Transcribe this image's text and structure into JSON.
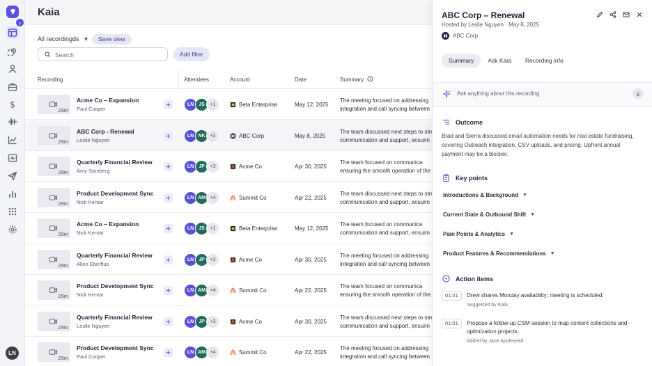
{
  "app": {
    "title": "Kaia",
    "user_initials": "LN"
  },
  "toolbar": {
    "view_label": "All recordingds",
    "save_view": "Save view",
    "search_placeholder": "Search",
    "add_filter": "Add filter"
  },
  "columns": {
    "recording": "Recording",
    "attendees": "Attendees",
    "account": "Account",
    "date": "Date",
    "summary": "Summary"
  },
  "rows": [
    {
      "title": "Acme Co – Expansion",
      "host": "Paul Cooper",
      "duration": "29m",
      "attendees": [
        "LN",
        "JS"
      ],
      "more": "+1",
      "account": "Beta Enterprise",
      "date": "May 12, 2025",
      "summary": [
        "The meeting focused on addressing",
        "integration and call syncing between"
      ]
    },
    {
      "title": "ABC Corp - Renewal",
      "host": "Leslie Nguyen",
      "duration": "29m",
      "attendees": [
        "LN",
        "NK"
      ],
      "more": "+2",
      "account": "ABC Corp",
      "date": "May 8, 2025",
      "summary": [
        "The team discussed next steps to stre",
        "communication and support, ensurin"
      ]
    },
    {
      "title": "Quarterly Financial Review",
      "host": "Amy Samberg",
      "duration": "29m",
      "attendees": [
        "LN",
        "JP"
      ],
      "more": "+3",
      "account": "Acme Co",
      "date": "Apr 30, 2025",
      "summary": [
        "The team focused on communica",
        "ensuring the smooth operation of the"
      ]
    },
    {
      "title": "Product Development Sync",
      "host": "Nick Kentar",
      "duration": "29m",
      "attendees": [
        "LN",
        "AM"
      ],
      "more": "+4",
      "account": "Summit Co",
      "date": "Apr 22, 2025",
      "summary": [
        "The team discussed next steps to stre",
        "communication and support, ensurin"
      ]
    },
    {
      "title": "Acme Co – Expansion",
      "host": "Nick Kentar",
      "duration": "29m",
      "attendees": [
        "LN",
        "JS"
      ],
      "more": "+1",
      "account": "Beta Enterprise",
      "date": "May 12, 2025",
      "summary": [
        "The team focused on communica",
        "communication and support, ensurin"
      ]
    },
    {
      "title": "Quarterly Financial Review",
      "host": "Allen Eberflus",
      "duration": "29m",
      "attendees": [
        "LN",
        "JP"
      ],
      "more": "+3",
      "account": "Acme Co",
      "date": "Apr 30, 2025",
      "summary": [
        "The meeting focused on addressing",
        "integration and call syncing between"
      ]
    },
    {
      "title": "Product Development Sync",
      "host": "Nick Kentar",
      "duration": "29m",
      "attendees": [
        "LN",
        "AM"
      ],
      "more": "+4",
      "account": "Summit Co",
      "date": "Apr 22, 2025",
      "summary": [
        "The team focused on communica",
        "ensuring the smooth operation of the"
      ]
    },
    {
      "title": "Quarterly Financial Review",
      "host": "Leslie Nguyen",
      "duration": "29m",
      "attendees": [
        "LN",
        "JP"
      ],
      "more": "+3",
      "account": "Acme Co",
      "date": "Apr 30, 2025",
      "summary": [
        "The team discussed next steps to stre",
        "communication and support, ensurin"
      ]
    },
    {
      "title": "Product Development Sync",
      "host": "Paul Cooper",
      "duration": "29m",
      "attendees": [
        "LN",
        "AM"
      ],
      "more": "+4",
      "account": "Summit Co",
      "date": "Apr 22, 2025",
      "summary": [
        "The meeting focused on addressing",
        "integration and call syncing between"
      ]
    }
  ],
  "panel": {
    "title": "ABC Corp – Renewal",
    "hosted_by": "Hosted by Leslie Nguyen",
    "date": "May 8, 2025",
    "account": "ABC Corp",
    "tabs": [
      "Summary",
      "Ask Kaia",
      "Recording info"
    ],
    "ask_placeholder": "Ask anything about this recording",
    "outcome_heading": "Outcome",
    "outcome_text": "Brad and Sierra discussed email automation needs for real estate fundraising, covering Outreach integration, CSV uploads, and pricing. Upfront annual payment may be a blocker.",
    "key_points_heading": "Key points",
    "key_points": [
      "Introductions & Background",
      "Current State & Outbound Shift",
      "Pain Points & Analytics",
      "Product Features & Recommendations"
    ],
    "action_items_heading": "Action items",
    "action_items": [
      {
        "time": "01:01",
        "text": "Drew shares Monday availability; meeting is scheduled.",
        "by": "Suggested by Kaia"
      },
      {
        "time": "01:01",
        "text": "Propose a follow-up CSM session to map content collections and optimization projects.",
        "by": "Added by Jane Apoleseed"
      }
    ]
  },
  "colors": {
    "accent": "#5b4fe0",
    "LN": "#5d50d8",
    "JS": "#1f6b5a",
    "NK": "#1f6b5a",
    "JP": "#1f6b5a",
    "AM": "#1f6b5a"
  }
}
